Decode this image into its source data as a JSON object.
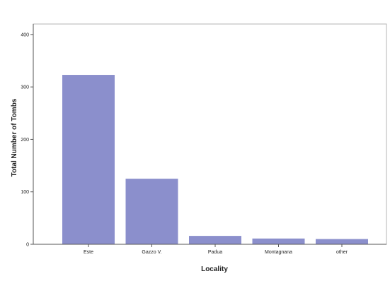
{
  "chart_data": {
    "type": "bar",
    "title": "",
    "xlabel": "Locality",
    "ylabel": "Total Number of Tombs",
    "categories": [
      "Este",
      "Gazzo V.",
      "Padua",
      "Montagnana",
      "other"
    ],
    "values": [
      323,
      125,
      16,
      11,
      10
    ],
    "ylim": [
      0,
      420
    ],
    "yticks": [
      0,
      100,
      200,
      300,
      400
    ],
    "grid": false,
    "legend": "none",
    "bar_color": "#8b8fcc",
    "axis_color": "#555555"
  }
}
